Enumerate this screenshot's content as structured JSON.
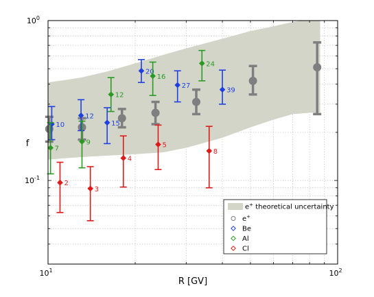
{
  "chart_data": {
    "type": "scatter",
    "xlabel": "R [GV]",
    "ylabel": "f",
    "xscale": "log",
    "yscale": "log",
    "xlim": [
      10,
      100
    ],
    "ylim": [
      0.03,
      1
    ],
    "grid": true,
    "x_tick_labels": [
      {
        "base": "10",
        "exp": "1",
        "value": 10
      },
      {
        "base": "10",
        "exp": "2",
        "value": 100
      }
    ],
    "y_tick_labels": [
      {
        "base": "10",
        "exp": "-1",
        "value": 0.1
      },
      {
        "base": "10",
        "exp": "0",
        "value": 1
      }
    ],
    "band": {
      "name": "e⁺ theoretical uncertainty",
      "color": "#d2d5c8",
      "x": [
        10,
        11,
        13,
        16,
        20,
        25,
        30,
        40,
        50,
        60,
        70,
        80,
        87
      ],
      "upper": [
        0.41,
        0.42,
        0.44,
        0.48,
        0.54,
        0.61,
        0.67,
        0.77,
        0.86,
        0.92,
        0.98,
        1.02,
        1.06
      ],
      "lower": [
        0.135,
        0.137,
        0.14,
        0.143,
        0.146,
        0.15,
        0.16,
        0.185,
        0.215,
        0.24,
        0.26,
        0.265,
        0.265
      ]
    },
    "series": [
      {
        "name": "e⁺",
        "color": "#7f7f7f",
        "marker": "circle",
        "points": [
          {
            "x": 10.1,
            "y": 0.21,
            "lo": 0.175,
            "hi": 0.25,
            "label": ""
          },
          {
            "x": 13.1,
            "y": 0.215,
            "lo": 0.18,
            "hi": 0.245,
            "label": ""
          },
          {
            "x": 18.0,
            "y": 0.245,
            "lo": 0.215,
            "hi": 0.28,
            "label": ""
          },
          {
            "x": 23.5,
            "y": 0.265,
            "lo": 0.225,
            "hi": 0.31,
            "label": ""
          },
          {
            "x": 32.5,
            "y": 0.31,
            "lo": 0.26,
            "hi": 0.37,
            "label": ""
          },
          {
            "x": 51.0,
            "y": 0.42,
            "lo": 0.345,
            "hi": 0.52,
            "label": ""
          },
          {
            "x": 85.0,
            "y": 0.51,
            "lo": 0.26,
            "hi": 0.73,
            "label": ""
          }
        ]
      },
      {
        "name": "Be",
        "color": "#1f3fe0",
        "marker": "diamond",
        "points": [
          {
            "x": 10.3,
            "y": 0.225,
            "lo": 0.18,
            "hi": 0.29,
            "label": "10"
          },
          {
            "x": 13.0,
            "y": 0.255,
            "lo": 0.205,
            "hi": 0.32,
            "label": "12"
          },
          {
            "x": 16.0,
            "y": 0.23,
            "lo": 0.17,
            "hi": 0.285,
            "label": "15"
          },
          {
            "x": 21.0,
            "y": 0.485,
            "lo": 0.41,
            "hi": 0.57,
            "label": "20"
          },
          {
            "x": 28.0,
            "y": 0.395,
            "lo": 0.31,
            "hi": 0.485,
            "label": "27"
          },
          {
            "x": 40.0,
            "y": 0.37,
            "lo": 0.3,
            "hi": 0.49,
            "label": "39"
          }
        ]
      },
      {
        "name": "Al",
        "color": "#2a9a22",
        "marker": "diamond",
        "points": [
          {
            "x": 10.2,
            "y": 0.16,
            "lo": 0.11,
            "hi": 0.23,
            "label": "7"
          },
          {
            "x": 13.1,
            "y": 0.175,
            "lo": 0.12,
            "hi": 0.235,
            "label": "9"
          },
          {
            "x": 16.5,
            "y": 0.345,
            "lo": 0.27,
            "hi": 0.44,
            "label": "12"
          },
          {
            "x": 23.0,
            "y": 0.45,
            "lo": 0.34,
            "hi": 0.55,
            "label": "16"
          },
          {
            "x": 34.0,
            "y": 0.54,
            "lo": 0.42,
            "hi": 0.65,
            "label": "24"
          }
        ]
      },
      {
        "name": "Cl",
        "color": "#e01a1a",
        "marker": "diamond",
        "points": [
          {
            "x": 11.0,
            "y": 0.097,
            "lo": 0.063,
            "hi": 0.13,
            "label": "2"
          },
          {
            "x": 14.0,
            "y": 0.089,
            "lo": 0.056,
            "hi": 0.122,
            "label": "3"
          },
          {
            "x": 18.2,
            "y": 0.138,
            "lo": 0.091,
            "hi": 0.19,
            "label": "4"
          },
          {
            "x": 24.0,
            "y": 0.168,
            "lo": 0.117,
            "hi": 0.222,
            "label": "5"
          },
          {
            "x": 36.0,
            "y": 0.153,
            "lo": 0.09,
            "hi": 0.218,
            "label": "8"
          }
        ]
      }
    ],
    "legend": {
      "placement": "lower-right",
      "entries": [
        {
          "symbol": "band",
          "text": "e",
          "sup": "+",
          "text_after": " theoretical uncertainty"
        },
        {
          "symbol": "circle",
          "color": "#7f7f7f",
          "text": "e",
          "sup": "+",
          "text_after": ""
        },
        {
          "symbol": "diamond",
          "color": "#1f3fe0",
          "text": "Be",
          "sup": "",
          "text_after": ""
        },
        {
          "symbol": "diamond",
          "color": "#2a9a22",
          "text": "Al",
          "sup": "",
          "text_after": ""
        },
        {
          "symbol": "diamond",
          "color": "#e01a1a",
          "text": "Cl",
          "sup": "",
          "text_after": ""
        }
      ]
    }
  }
}
